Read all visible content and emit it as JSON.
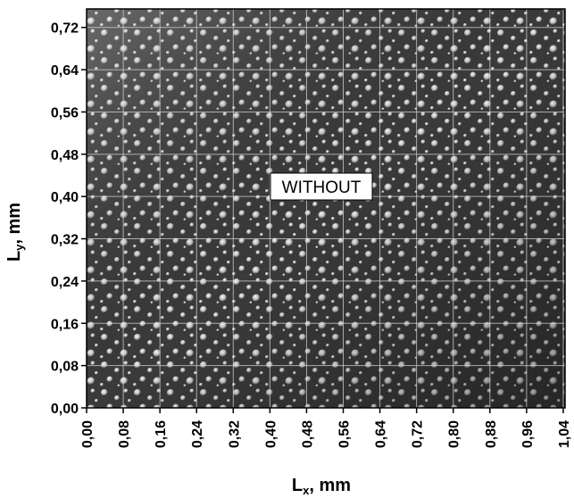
{
  "chart_data": {
    "type": "image",
    "annotation": "WITHOUT",
    "xlabel": [
      "L",
      "x",
      ", mm"
    ],
    "ylabel": [
      "L",
      "y",
      ", mm"
    ],
    "xlim": [
      0,
      1.044
    ],
    "ylim": [
      0,
      0.755
    ],
    "xticks": [
      {
        "value": 0,
        "label": "0,00"
      },
      {
        "value": 0.08,
        "label": "0,08"
      },
      {
        "value": 0.16,
        "label": "0,16"
      },
      {
        "value": 0.24,
        "label": "0,24"
      },
      {
        "value": 0.32,
        "label": "0,32"
      },
      {
        "value": 0.4,
        "label": "0,40"
      },
      {
        "value": 0.48,
        "label": "0,48"
      },
      {
        "value": 0.56,
        "label": "0,56"
      },
      {
        "value": 0.64,
        "label": "0,64"
      },
      {
        "value": 0.72,
        "label": "0,72"
      },
      {
        "value": 0.8,
        "label": "0,80"
      },
      {
        "value": 0.88,
        "label": "0,88"
      },
      {
        "value": 0.96,
        "label": "0,96"
      },
      {
        "value": 1.04,
        "label": "1,04"
      }
    ],
    "yticks": [
      {
        "value": 0,
        "label": "0,00"
      },
      {
        "value": 0.08,
        "label": "0,08"
      },
      {
        "value": 0.16,
        "label": "0,16"
      },
      {
        "value": 0.24,
        "label": "0,24"
      },
      {
        "value": 0.32,
        "label": "0,32"
      },
      {
        "value": 0.4,
        "label": "0,40"
      },
      {
        "value": 0.48,
        "label": "0,48"
      },
      {
        "value": 0.56,
        "label": "0,56"
      },
      {
        "value": 0.64,
        "label": "0,64"
      },
      {
        "value": 0.72,
        "label": "0,72"
      }
    ],
    "grid": true
  }
}
